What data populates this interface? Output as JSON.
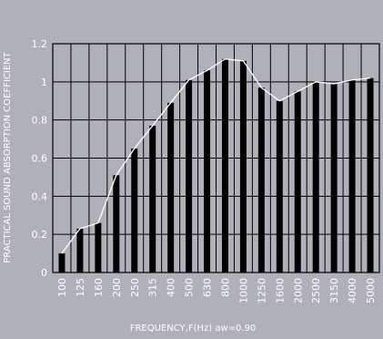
{
  "chart_data": {
    "type": "bar",
    "title": "",
    "xlabel": "FREQUENCY,F(Hz)  aw=0.90",
    "ylabel": "PRACTICAL SOUND ABSORPTION COEFFICIENT",
    "ylim": [
      0,
      1.2
    ],
    "yticks": [
      "0",
      "0.2",
      "0.4",
      "0.6",
      "0.8",
      "1",
      "1.2"
    ],
    "grid": true,
    "categories": [
      "100",
      "125",
      "160",
      "200",
      "250",
      "315",
      "400",
      "500",
      "630",
      "800",
      "1000",
      "1250",
      "1600",
      "2000",
      "2500",
      "3150",
      "4000",
      "5000"
    ],
    "series": [
      {
        "values": [
          0.1,
          0.23,
          0.26,
          0.51,
          0.65,
          0.77,
          0.89,
          1.01,
          1.06,
          1.12,
          1.11,
          0.97,
          0.9,
          0.95,
          1.0,
          0.99,
          1.01,
          1.02
        ]
      }
    ],
    "colors": {
      "background": "#b0b0b8",
      "bar": "#000000",
      "grid": "#000000",
      "line": "#ffffff",
      "text": "#ffffff"
    }
  }
}
